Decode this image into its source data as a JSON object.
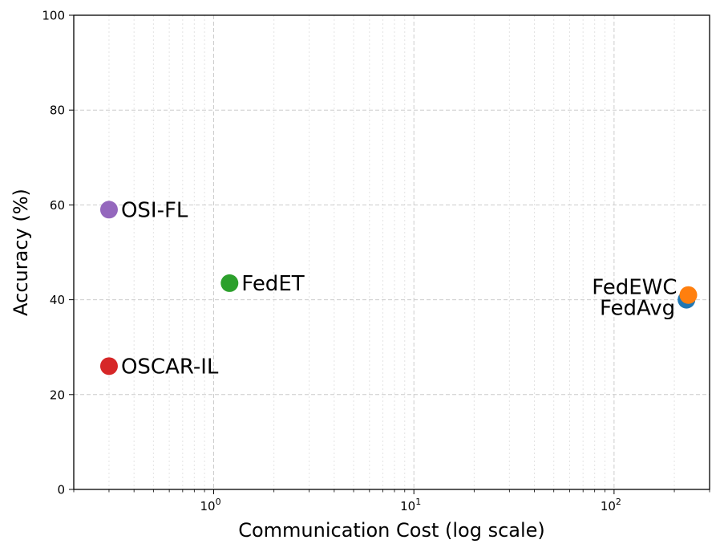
{
  "chart_data": {
    "type": "scatter",
    "title": "",
    "xlabel": "Communication Cost (log scale)",
    "ylabel": "Accuracy (%)",
    "xscale": "log",
    "xlim": [
      0.2,
      300
    ],
    "ylim": [
      0,
      100
    ],
    "grid": true,
    "x_ticks": [
      {
        "value": 1,
        "base": "10",
        "exp": "0"
      },
      {
        "value": 10,
        "base": "10",
        "exp": "1"
      },
      {
        "value": 100,
        "base": "10",
        "exp": "2"
      }
    ],
    "y_ticks": [
      {
        "value": 0,
        "label": "0"
      },
      {
        "value": 20,
        "label": "20"
      },
      {
        "value": 40,
        "label": "40"
      },
      {
        "value": 60,
        "label": "60"
      },
      {
        "value": 80,
        "label": "80"
      },
      {
        "value": 100,
        "label": "100"
      }
    ],
    "points": [
      {
        "name": "FedAvg",
        "label": "FedAvg",
        "x": 230,
        "y": 40,
        "color": "#1f77b4",
        "label_side": "left",
        "label_dy": 10
      },
      {
        "name": "FedEWC",
        "label": "FedEWC",
        "x": 235,
        "y": 41,
        "color": "#ff7f0e",
        "label_side": "left",
        "label_dy": -10
      },
      {
        "name": "FedET",
        "label": "FedET",
        "x": 1.2,
        "y": 43.5,
        "color": "#2ca02c",
        "label_side": "right",
        "label_dy": 0
      },
      {
        "name": "OSCAR-IL",
        "label": "OSCAR-IL",
        "x": 0.3,
        "y": 26,
        "color": "#d62728",
        "label_side": "right",
        "label_dy": 0
      },
      {
        "name": "OSI-FL",
        "label": "OSI-FL",
        "x": 0.3,
        "y": 59,
        "color": "#9467bd",
        "label_side": "right",
        "label_dy": 0
      }
    ]
  }
}
